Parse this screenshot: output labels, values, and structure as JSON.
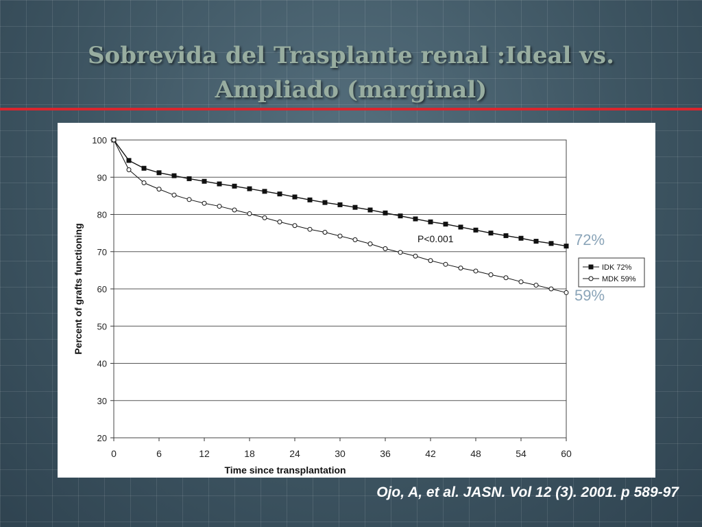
{
  "slide": {
    "title_line1": "Sobrevida del Trasplante renal :Ideal vs.",
    "title_line2": "Ampliado (marginal)",
    "citation": "Ojo, A, et al. JASN. Vol 12 (3). 2001. p 589-97",
    "end_label_idk": "72%",
    "end_label_mdk": "59%"
  },
  "colors": {
    "accent_rule": "#d9262e",
    "end_labels": "#8aa4b8"
  },
  "chart_data": {
    "type": "line",
    "xlabel": "Time since transplantation",
    "ylabel": "Percent of grafts functioning",
    "xlim": [
      0,
      60
    ],
    "ylim": [
      20,
      100
    ],
    "xticks": [
      0,
      6,
      12,
      18,
      24,
      30,
      36,
      42,
      48,
      54,
      60
    ],
    "yticks": [
      20,
      30,
      40,
      50,
      60,
      70,
      80,
      90,
      100
    ],
    "grid": "horizontal",
    "annotation": "P<0.001",
    "legend_placement": "right",
    "x": [
      0,
      2,
      4,
      6,
      8,
      10,
      12,
      14,
      16,
      18,
      20,
      22,
      24,
      26,
      28,
      30,
      32,
      34,
      36,
      38,
      40,
      42,
      44,
      46,
      48,
      50,
      52,
      54,
      56,
      58,
      60
    ],
    "series": [
      {
        "name": "IDK",
        "legend_label": "IDK  72%",
        "marker": "filled-square",
        "values": [
          100,
          94.5,
          92.4,
          91.2,
          90.4,
          89.6,
          88.9,
          88.2,
          87.6,
          86.9,
          86.2,
          85.5,
          84.7,
          83.9,
          83.2,
          82.6,
          81.9,
          81.2,
          80.4,
          79.6,
          78.8,
          78.0,
          77.4,
          76.6,
          75.8,
          75.0,
          74.3,
          73.6,
          72.8,
          72.2,
          71.5
        ]
      },
      {
        "name": "MDK",
        "legend_label": "MDK 59%",
        "marker": "open-circle",
        "values": [
          100,
          92.0,
          88.5,
          86.8,
          85.2,
          84.0,
          83.0,
          82.2,
          81.2,
          80.2,
          79.1,
          78.0,
          77.0,
          76.0,
          75.2,
          74.2,
          73.2,
          72.1,
          70.8,
          69.8,
          68.8,
          67.6,
          66.6,
          65.6,
          64.8,
          63.8,
          63.0,
          61.9,
          61.0,
          60.0,
          59.0
        ]
      }
    ]
  }
}
